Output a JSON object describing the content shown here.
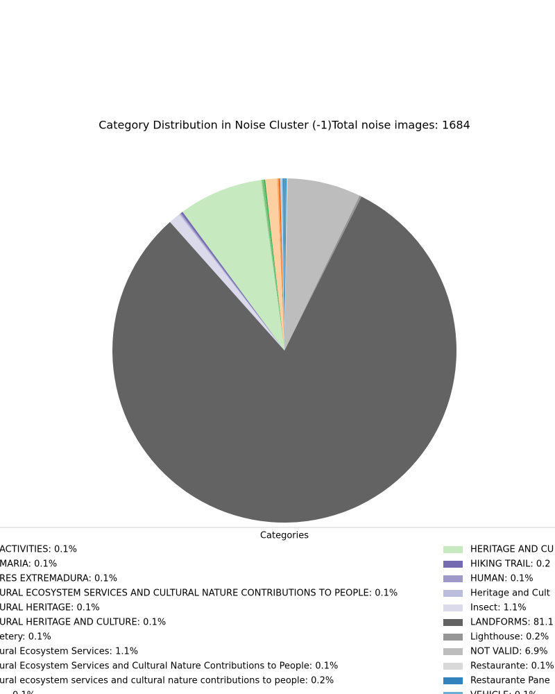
{
  "chart_data": {
    "type": "pie",
    "title": "Category Distribution in Noise Cluster (-1)Total noise images: 1684",
    "legend_title": "Categories",
    "categories": [
      "ACTIVITIES: 0.1%",
      "MARIA: 0.1%",
      "RES EXTREMADURA: 0.1%",
      "URAL ECOSYSTEM SERVICES AND CULTURAL NATURE CONTRIBUTIONS TO PEOPLE: 0.1%",
      "URAL HERITAGE: 0.1%",
      "URAL HERITAGE AND CULTURE: 0.1%",
      "etery: 0.1%",
      "ural Ecosystem Services: 1.1%",
      "ural Ecosystem Services and Cultural Nature Contributions to People: 0.1%",
      "ural ecosystem services and cultural nature contributions to people: 0.2%",
      "0.1%",
      "HERITAGE AND CU",
      "HIKING TRAIL: 0.2",
      "HUMAN: 0.1%",
      "Heritage and Cult",
      "Insect: 1.1%",
      "LANDFORMS: 81.1",
      "Lighthouse: 0.2%",
      "NOT VALID: 6.9%",
      "Restaurante: 0.1%",
      "Restaurante Pane",
      "VEHICLE: 0.1%"
    ],
    "values": [
      0.1,
      0.1,
      0.1,
      0.1,
      0.1,
      0.1,
      0.1,
      1.1,
      0.1,
      0.2,
      0.1,
      7.9,
      0.2,
      0.1,
      0.1,
      1.1,
      81.1,
      0.2,
      6.9,
      0.1,
      0.1,
      0.1
    ],
    "colors": [
      "#3182bd",
      "#6baed6",
      "#9ecae1",
      "#c6dbef",
      "#e6550d",
      "#fd8d3c",
      "#fdae6b",
      "#fdd0a2",
      "#31a354",
      "#74c476",
      "#a1d99b",
      "#c7e9c0",
      "#756bb1",
      "#9e9ac8",
      "#bcbddc",
      "#dadaeb",
      "#636363",
      "#969696",
      "#bdbdbd",
      "#d9d9d9",
      "#3182bd",
      "#6baed6"
    ]
  }
}
